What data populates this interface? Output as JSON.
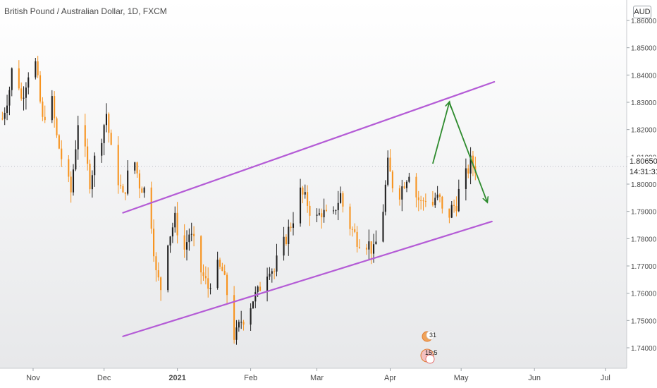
{
  "header": {
    "title": "British Pound / Australian Dollar, 1D, FXCM",
    "currency": "AUD"
  },
  "price_label": {
    "current": "1.80650",
    "countdown": "14:31:31"
  },
  "events": [
    {
      "label": "31"
    },
    {
      "label": "15:5"
    }
  ],
  "colors": {
    "up_candle": "#1f1f1f",
    "down_candle": "#f7931e",
    "channel": "#b45bd6",
    "arrow": "#2e8b2e",
    "axis_text": "#4a4a4a"
  },
  "chart_data": {
    "type": "candlestick",
    "symbol": "GBPAUD",
    "timeframe": "1D",
    "y_axis": {
      "min": 1.7325,
      "max": 1.8675,
      "ticks": [
        "1.74000",
        "1.75000",
        "1.76000",
        "1.77000",
        "1.78000",
        "1.79000",
        "1.80000",
        "1.81000",
        "1.82000",
        "1.83000",
        "1.84000",
        "1.85000",
        "1.86000"
      ]
    },
    "x_axis": {
      "range": [
        "2020-10-18",
        "2021-07-10"
      ],
      "ticks": [
        {
          "label": "Nov",
          "date": "2020-11-01"
        },
        {
          "label": "Dec",
          "date": "2020-12-01"
        },
        {
          "label": "2021",
          "date": "2021-01-01"
        },
        {
          "label": "Feb",
          "date": "2021-02-01"
        },
        {
          "label": "Mar",
          "date": "2021-03-01"
        },
        {
          "label": "Apr",
          "date": "2021-04-01"
        },
        {
          "label": "May",
          "date": "2021-05-01"
        },
        {
          "label": "Jun",
          "date": "2021-06-01"
        },
        {
          "label": "Jul",
          "date": "2021-07-01"
        }
      ]
    },
    "close_path": [
      [
        "2020-10-19",
        1.824
      ],
      [
        "2020-10-22",
        1.835
      ],
      [
        "2020-10-24",
        1.848
      ],
      [
        "2020-10-27",
        1.831
      ],
      [
        "2020-10-30",
        1.841
      ],
      [
        "2020-11-02",
        1.844
      ],
      [
        "2020-11-05",
        1.823
      ],
      [
        "2020-11-07",
        1.829
      ],
      [
        "2020-11-09",
        1.83
      ],
      [
        "2020-11-11",
        1.817
      ],
      [
        "2020-11-14",
        1.806
      ],
      [
        "2020-11-17",
        1.797
      ],
      [
        "2020-11-20",
        1.823
      ],
      [
        "2020-11-23",
        1.811
      ],
      [
        "2020-11-25",
        1.801
      ],
      [
        "2020-11-28",
        1.813
      ],
      [
        "2020-11-30",
        1.818
      ],
      [
        "2020-12-02",
        1.826
      ],
      [
        "2020-12-04",
        1.812
      ],
      [
        "2020-12-06",
        1.805
      ],
      [
        "2020-12-09",
        1.795
      ],
      [
        "2020-12-11",
        1.803
      ],
      [
        "2020-12-13",
        1.812
      ],
      [
        "2020-12-16",
        1.8
      ],
      [
        "2020-12-18",
        1.798
      ],
      [
        "2020-12-21",
        1.786
      ],
      [
        "2020-12-23",
        1.767
      ],
      [
        "2020-12-25",
        1.762
      ],
      [
        "2020-12-27",
        1.778
      ],
      [
        "2020-12-29",
        1.782
      ],
      [
        "2020-12-31",
        1.787
      ],
      [
        "2021-01-02",
        1.78
      ],
      [
        "2021-01-04",
        1.776
      ],
      [
        "2021-01-06",
        1.782
      ],
      [
        "2021-01-08",
        1.778
      ],
      [
        "2021-01-10",
        1.77
      ],
      [
        "2021-01-12",
        1.766
      ],
      [
        "2021-01-14",
        1.762
      ],
      [
        "2021-01-17",
        1.77
      ],
      [
        "2021-01-20",
        1.768
      ],
      [
        "2021-01-22",
        1.76
      ],
      [
        "2021-01-24",
        1.744
      ],
      [
        "2021-01-26",
        1.745
      ],
      [
        "2021-01-28",
        1.75
      ],
      [
        "2021-01-30",
        1.752
      ],
      [
        "2021-02-02",
        1.758
      ],
      [
        "2021-02-04",
        1.76
      ],
      [
        "2021-02-06",
        1.765
      ],
      [
        "2021-02-09",
        1.77
      ],
      [
        "2021-02-11",
        1.768
      ],
      [
        "2021-02-13",
        1.775
      ],
      [
        "2021-02-15",
        1.778
      ],
      [
        "2021-02-17",
        1.783
      ],
      [
        "2021-02-20",
        1.79
      ],
      [
        "2021-02-22",
        1.797
      ],
      [
        "2021-02-25",
        1.793
      ],
      [
        "2021-02-28",
        1.786
      ],
      [
        "2021-03-03",
        1.79
      ],
      [
        "2021-03-05",
        1.788
      ],
      [
        "2021-03-07",
        1.784
      ],
      [
        "2021-03-09",
        1.792
      ],
      [
        "2021-03-11",
        1.796
      ],
      [
        "2021-03-13",
        1.788
      ],
      [
        "2021-03-16",
        1.783
      ],
      [
        "2021-03-18",
        1.78
      ],
      [
        "2021-03-21",
        1.779
      ],
      [
        "2021-03-23",
        1.778
      ],
      [
        "2021-03-25",
        1.775
      ],
      [
        "2021-03-27",
        1.782
      ],
      [
        "2021-03-29",
        1.791
      ],
      [
        "2021-03-31",
        1.807
      ],
      [
        "2021-04-02",
        1.8
      ],
      [
        "2021-04-04",
        1.795
      ],
      [
        "2021-04-07",
        1.801
      ],
      [
        "2021-04-09",
        1.805
      ],
      [
        "2021-04-11",
        1.797
      ],
      [
        "2021-04-14",
        1.793
      ],
      [
        "2021-04-16",
        1.795
      ],
      [
        "2021-04-18",
        1.79
      ],
      [
        "2021-04-20",
        1.795
      ],
      [
        "2021-04-22",
        1.794
      ],
      [
        "2021-04-24",
        1.785
      ],
      [
        "2021-04-27",
        1.791
      ],
      [
        "2021-04-29",
        1.793
      ],
      [
        "2021-05-01",
        1.801
      ],
      [
        "2021-05-03",
        1.803
      ],
      [
        "2021-05-05",
        1.808
      ],
      [
        "2021-05-07",
        1.806
      ],
      [
        "2021-05-09",
        1.806
      ]
    ],
    "price_line": 1.8065,
    "channel": {
      "upper": [
        [
          "2020-12-09",
          1.7895
        ],
        [
          "2021-05-15",
          1.8375
        ]
      ],
      "lower": [
        [
          "2020-12-09",
          1.7442
        ],
        [
          "2021-05-14",
          1.7863
        ]
      ]
    },
    "forecast_arrows": [
      {
        "from": [
          "2021-04-19",
          1.8075
        ],
        "to": [
          "2021-04-26",
          1.83
        ]
      },
      {
        "from": [
          "2021-04-26",
          1.83
        ],
        "to": [
          "2021-05-12",
          1.7935
        ]
      }
    ]
  }
}
